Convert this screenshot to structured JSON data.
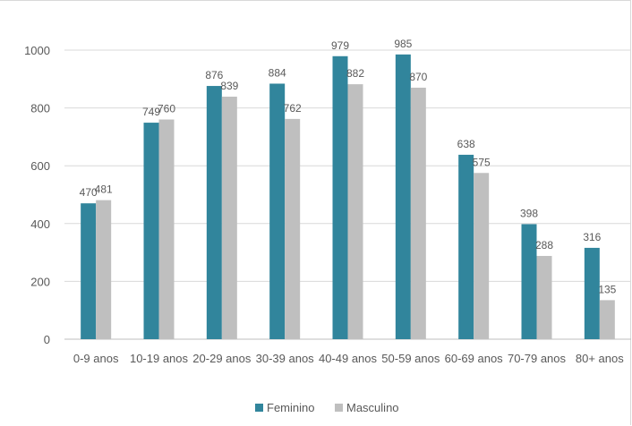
{
  "chart_data": {
    "type": "bar",
    "title": "",
    "xlabel": "",
    "ylabel": "",
    "ylim": [
      0,
      1000
    ],
    "yticks": [
      0,
      200,
      400,
      600,
      800,
      1000
    ],
    "grid": true,
    "legend_position": "bottom",
    "categories": [
      "0-9 anos",
      "10-19 anos",
      "20-29 anos",
      "30-39 anos",
      "40-49 anos",
      "50-59 anos",
      "60-69 anos",
      "70-79 anos",
      "80+ anos"
    ],
    "series": [
      {
        "name": "Feminino",
        "color": "#31859c",
        "values": [
          470,
          749,
          876,
          884,
          979,
          985,
          638,
          398,
          316
        ]
      },
      {
        "name": "Masculino",
        "color": "#bfbfbf",
        "values": [
          481,
          760,
          839,
          762,
          882,
          870,
          575,
          288,
          135
        ]
      }
    ]
  }
}
